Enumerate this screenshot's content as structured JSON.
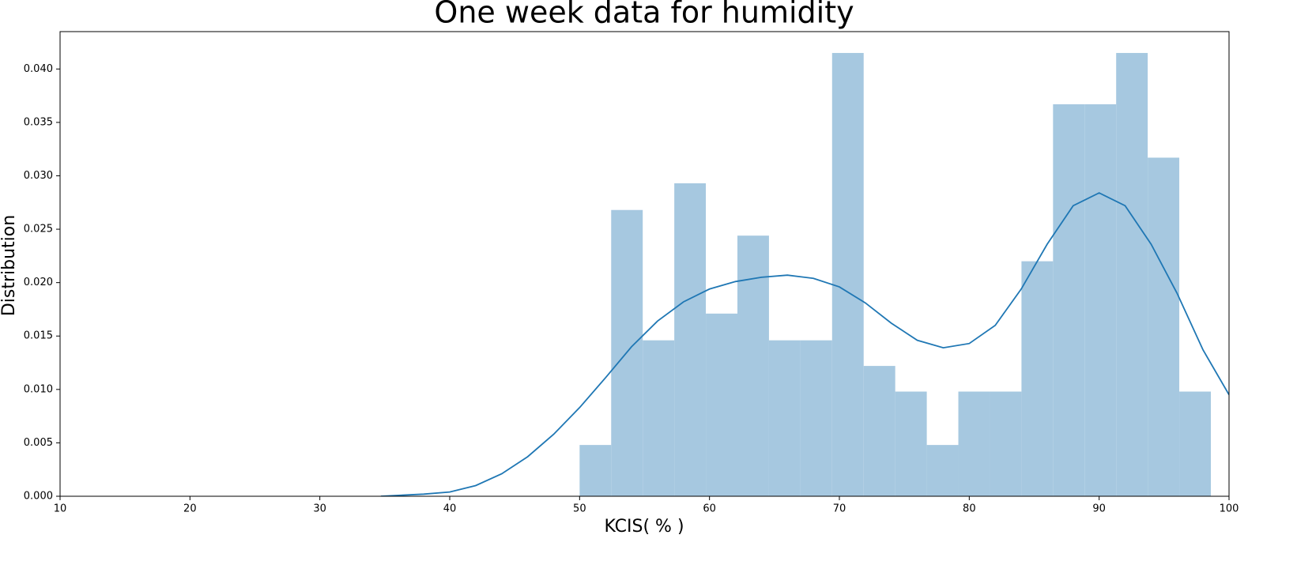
{
  "chart_data": {
    "type": "histogram",
    "title": "One week data for humidity",
    "xlabel": "KCIS( % )",
    "ylabel": "Distribution",
    "bins": [
      50,
      52.43,
      54.86,
      57.29,
      59.72,
      62.15,
      64.58,
      67.01,
      69.44,
      71.87,
      74.3,
      76.73,
      79.16,
      81.59,
      84.02,
      86.45,
      88.88,
      91.31,
      93.74,
      96.17,
      98.6
    ],
    "values": [
      0.0048,
      0.0268,
      0.0146,
      0.0293,
      0.0171,
      0.0244,
      0.0146,
      0.0146,
      0.0415,
      0.0122,
      0.0098,
      0.0048,
      0.0098,
      0.0098,
      0.022,
      0.0367,
      0.0367,
      0.0415,
      0.0317,
      0.0098
    ],
    "color": "#a6c8e0",
    "kde": {
      "color": "#1f77b4",
      "x": [
        34.7,
        38,
        40,
        42,
        44,
        46,
        48,
        50,
        52,
        54,
        56,
        58,
        60,
        62,
        64,
        66,
        68,
        70,
        72,
        74,
        76,
        78,
        80,
        82,
        84,
        86,
        88,
        90,
        92,
        94,
        96,
        98,
        100
      ],
      "values": [
        0,
        0.0002,
        0.0004,
        0.001,
        0.0021,
        0.0037,
        0.0058,
        0.0083,
        0.0111,
        0.014,
        0.0164,
        0.0182,
        0.0194,
        0.0201,
        0.0205,
        0.0207,
        0.0204,
        0.0196,
        0.0181,
        0.0162,
        0.0146,
        0.0139,
        0.0143,
        0.016,
        0.0194,
        0.0236,
        0.0272,
        0.0284,
        0.0272,
        0.0236,
        0.019,
        0.0137,
        0.0095
      ]
    },
    "xlim": [
      10,
      100
    ],
    "xticks": [
      10,
      20,
      30,
      40,
      50,
      60,
      70,
      80,
      90,
      100
    ],
    "ylim": [
      0,
      0.0435
    ],
    "yticks": [
      {
        "value": 0,
        "label": "0.000"
      },
      {
        "value": 0.005,
        "label": "0.005"
      },
      {
        "value": 0.01,
        "label": "0.010"
      },
      {
        "value": 0.015,
        "label": "0.015"
      },
      {
        "value": 0.02,
        "label": "0.020"
      },
      {
        "value": 0.025,
        "label": "0.025"
      },
      {
        "value": 0.03,
        "label": "0.030"
      },
      {
        "value": 0.035,
        "label": "0.035"
      },
      {
        "value": 0.04,
        "label": "0.040"
      }
    ]
  }
}
